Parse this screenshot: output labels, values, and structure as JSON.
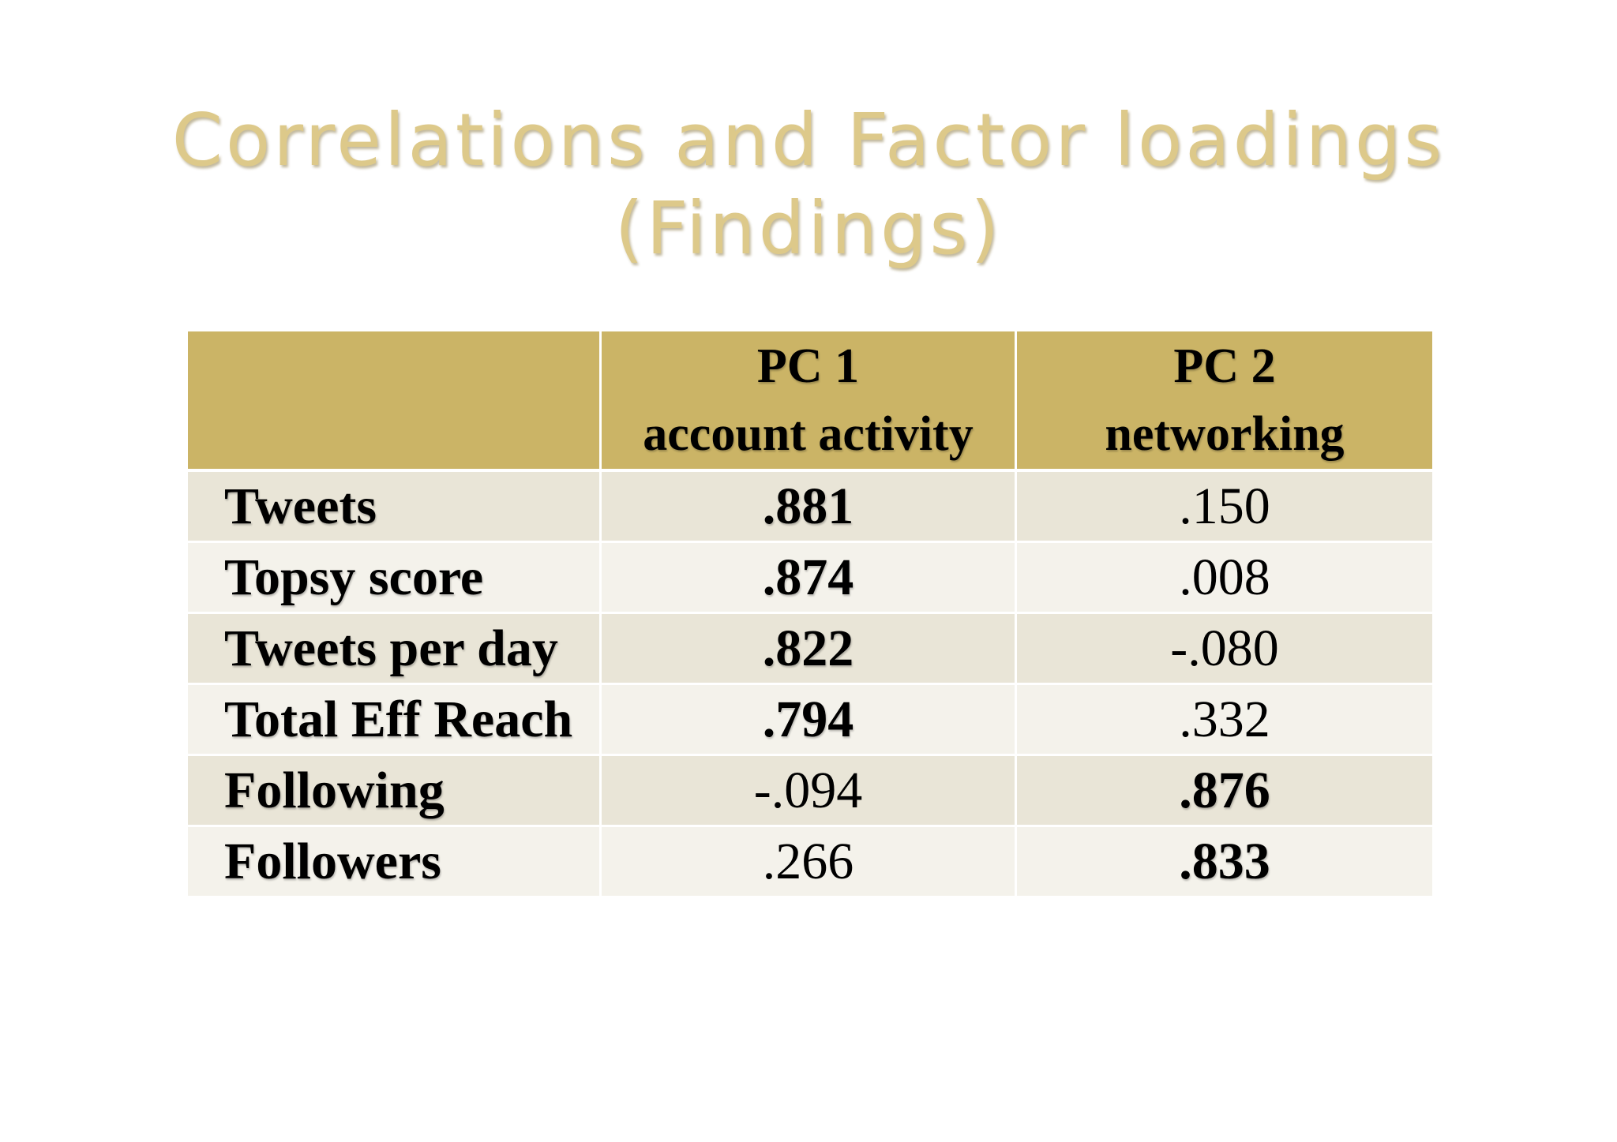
{
  "slide": {
    "title_line1": "Correlations and Factor loadings",
    "title_line2": "(Findings)"
  },
  "table": {
    "headers": [
      {
        "line1": "",
        "line2": ""
      },
      {
        "line1": "PC 1",
        "line2": "account activity"
      },
      {
        "line1": "PC 2",
        "line2": "networking"
      }
    ],
    "rows": [
      {
        "label": "Tweets",
        "pc1": ".881",
        "pc2": ".150",
        "bold": "pc1"
      },
      {
        "label": "Topsy score",
        "pc1": ".874",
        "pc2": ".008",
        "bold": "pc1"
      },
      {
        "label": "Tweets per day",
        "pc1": ".822",
        "pc2": "-.080",
        "bold": "pc1"
      },
      {
        "label": "Total Eff Reach",
        "pc1": ".794",
        "pc2": ".332",
        "bold": "pc1"
      },
      {
        "label": "Following",
        "pc1": "-.094",
        "pc2": ".876",
        "bold": "pc2"
      },
      {
        "label": "Followers",
        "pc1": ".266",
        "pc2": ".833",
        "bold": "pc2"
      }
    ]
  },
  "colors": {
    "title": "#ddc98a",
    "header_bg": "#cbb466",
    "row_odd_bg": "#e9e5d7",
    "row_even_bg": "#f4f2eb"
  }
}
